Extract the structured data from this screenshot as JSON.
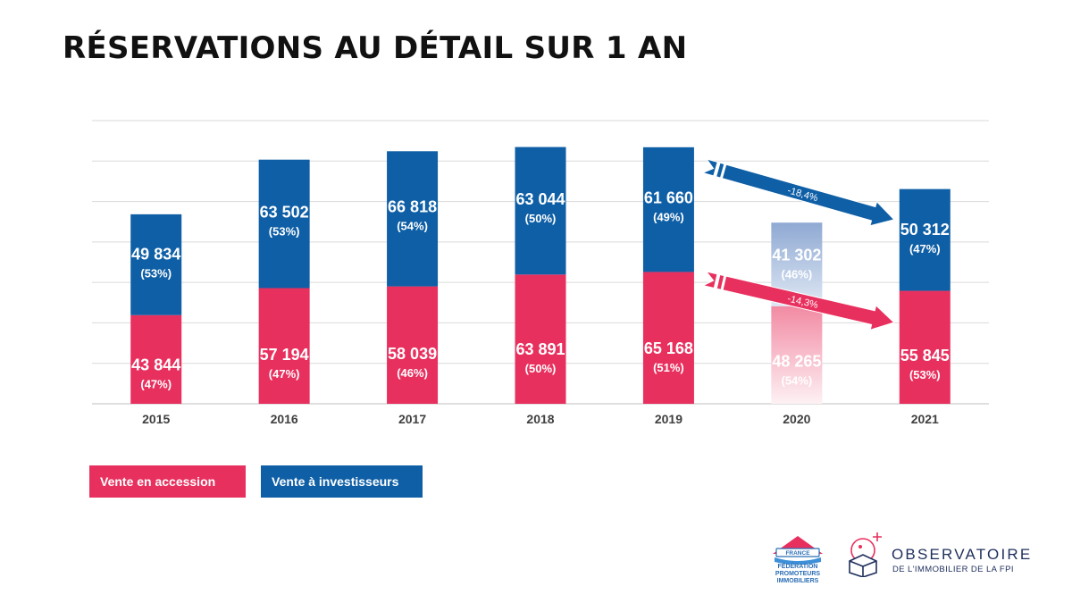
{
  "chart_data": {
    "type": "bar",
    "stacked": true,
    "title": "RÉSERVATIONS AU DÉTAIL SUR 1 AN",
    "categories": [
      "2015",
      "2016",
      "2017",
      "2018",
      "2019",
      "2020",
      "2021"
    ],
    "series": [
      {
        "name": "Vente en accession",
        "color": "#e8305e",
        "values": [
          43844,
          57194,
          58039,
          63891,
          65168,
          48265,
          55845
        ],
        "labels": [
          "43 844",
          "57 194",
          "58 039",
          "63 891",
          "65 168",
          "48 265",
          "55 845"
        ],
        "shares": [
          "(47%)",
          "(47%)",
          "(46%)",
          "(50%)",
          "(51%)",
          "(54%)",
          "(53%)"
        ]
      },
      {
        "name": "Vente à investisseurs",
        "color": "#0f5fa6",
        "values": [
          49834,
          63502,
          66818,
          63044,
          61660,
          41302,
          50312
        ],
        "labels": [
          "49 834",
          "63 502",
          "66 818",
          "63 044",
          "61 660",
          "41 302",
          "50 312"
        ],
        "shares": [
          "(53%)",
          "(53%)",
          "(54%)",
          "(50%)",
          "(49%)",
          "(46%)",
          "(47%)"
        ]
      }
    ],
    "ylim": [
      0,
      140000
    ],
    "grid": true,
    "highlight_category": "2020",
    "annotations": [
      {
        "series": "Vente à investisseurs",
        "label": "-18,4%",
        "from": "2019",
        "to": "2021"
      },
      {
        "series": "Vente en accession",
        "label": "-14,3%",
        "from": "2019",
        "to": "2021"
      }
    ],
    "legend_position": "bottom-left"
  },
  "legend": {
    "accession_label": "Vente en accession",
    "investors_label": "Vente à investisseurs"
  },
  "logos": {
    "fpi_country": "FRANCE",
    "fpi_lines": [
      "FÉDÉRATION",
      "PROMOTEURS",
      "IMMOBILIERS"
    ],
    "observatoire_name": "OBSERVATOIRE",
    "observatoire_sub": "DE L'IMMOBILIER DE LA FPI"
  }
}
